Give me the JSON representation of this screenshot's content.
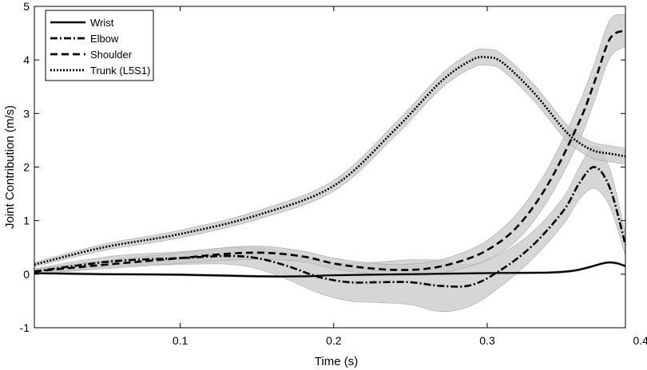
{
  "chart_data": {
    "type": "line",
    "title": "",
    "xlabel": "Time (s)",
    "ylabel": "Joint Contribution (m/s)",
    "xlim": [
      0.005,
      0.39
    ],
    "ylim": [
      -1,
      5
    ],
    "xticks": [
      0.1,
      0.2,
      0.3,
      0.4
    ],
    "yticks": [
      -1,
      0,
      1,
      2,
      3,
      4,
      5
    ],
    "xtick_labels": [
      "0.1",
      "0.2",
      "0.3",
      "0.4"
    ],
    "ytick_labels": [
      "-1",
      "0",
      "1",
      "2",
      "3",
      "4",
      "5"
    ],
    "legend_position": "top-left",
    "colors": {
      "line": "#000000",
      "band": "#c8c8c8",
      "band_edge": "#a8a8a8"
    },
    "series": [
      {
        "name": "Wrist",
        "style": "solid",
        "x": [
          0.005,
          0.05,
          0.1,
          0.15,
          0.18,
          0.2,
          0.25,
          0.3,
          0.34,
          0.355,
          0.365,
          0.375,
          0.38,
          0.385,
          0.39
        ],
        "y": [
          0.02,
          0.0,
          -0.01,
          -0.04,
          -0.04,
          -0.02,
          0.0,
          0.02,
          0.03,
          0.06,
          0.12,
          0.2,
          0.22,
          0.2,
          0.15
        ],
        "band": [
          0.02,
          0.02,
          0.02,
          0.02,
          0.02,
          0.02,
          0.02,
          0.02,
          0.02,
          0.02,
          0.02,
          0.02,
          0.02,
          0.02,
          0.02
        ]
      },
      {
        "name": "Elbow",
        "style": "dashdot",
        "x": [
          0.005,
          0.03,
          0.06,
          0.1,
          0.13,
          0.15,
          0.17,
          0.19,
          0.21,
          0.23,
          0.25,
          0.27,
          0.29,
          0.31,
          0.33,
          0.35,
          0.36,
          0.37,
          0.38,
          0.39
        ],
        "y": [
          0.05,
          0.15,
          0.25,
          0.3,
          0.34,
          0.3,
          0.15,
          -0.05,
          -0.15,
          -0.15,
          -0.15,
          -0.22,
          -0.2,
          0.1,
          0.55,
          1.2,
          1.7,
          2.0,
          1.6,
          0.55
        ],
        "band": [
          0.05,
          0.08,
          0.1,
          0.12,
          0.15,
          0.2,
          0.25,
          0.3,
          0.35,
          0.38,
          0.42,
          0.48,
          0.38,
          0.3,
          0.25,
          0.25,
          0.3,
          0.4,
          0.35,
          0.2
        ]
      },
      {
        "name": "Shoulder",
        "style": "dashed",
        "x": [
          0.005,
          0.03,
          0.06,
          0.1,
          0.13,
          0.155,
          0.18,
          0.2,
          0.22,
          0.24,
          0.26,
          0.28,
          0.3,
          0.32,
          0.34,
          0.36,
          0.37,
          0.38,
          0.39
        ],
        "y": [
          0.05,
          0.12,
          0.2,
          0.3,
          0.38,
          0.4,
          0.33,
          0.2,
          0.12,
          0.08,
          0.1,
          0.22,
          0.45,
          0.9,
          1.7,
          2.85,
          3.6,
          4.4,
          4.55
        ],
        "band": [
          0.05,
          0.06,
          0.08,
          0.1,
          0.12,
          0.12,
          0.1,
          0.1,
          0.1,
          0.1,
          0.12,
          0.14,
          0.18,
          0.25,
          0.3,
          0.35,
          0.35,
          0.35,
          0.3
        ]
      },
      {
        "name": "Trunk (L5S1)",
        "style": "dotted",
        "x": [
          0.005,
          0.05,
          0.1,
          0.15,
          0.2,
          0.24,
          0.27,
          0.29,
          0.3,
          0.31,
          0.33,
          0.35,
          0.36,
          0.37,
          0.38,
          0.39
        ],
        "y": [
          0.18,
          0.5,
          0.75,
          1.1,
          1.65,
          2.7,
          3.6,
          4.0,
          4.05,
          3.95,
          3.4,
          2.7,
          2.45,
          2.3,
          2.25,
          2.2
        ],
        "band": [
          0.04,
          0.06,
          0.07,
          0.08,
          0.1,
          0.12,
          0.13,
          0.15,
          0.15,
          0.15,
          0.15,
          0.15,
          0.15,
          0.15,
          0.15,
          0.15
        ]
      }
    ]
  }
}
